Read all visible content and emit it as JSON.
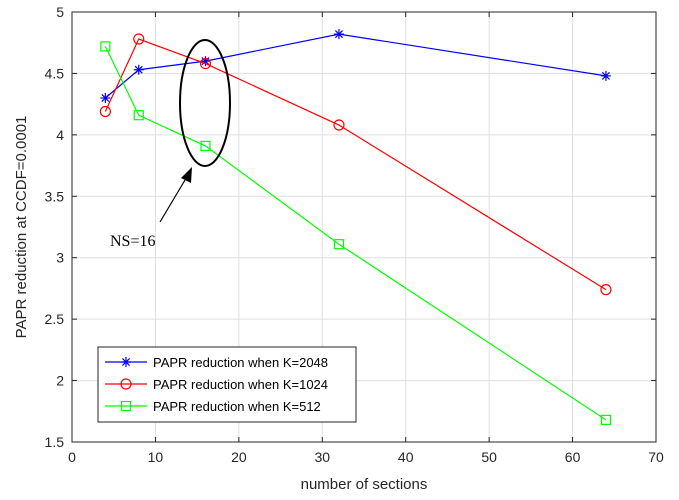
{
  "chart_data": {
    "type": "line",
    "xlabel": "number of sections",
    "ylabel": "PAPR reduction at CCDF=0.0001",
    "xlim": [
      0,
      70
    ],
    "ylim": [
      1.5,
      5
    ],
    "x_ticks": [
      0,
      10,
      20,
      30,
      40,
      50,
      60,
      70
    ],
    "y_ticks": [
      1.5,
      2,
      2.5,
      3,
      3.5,
      4,
      4.5,
      5
    ],
    "x_tick_labels": [
      "0",
      "10",
      "20",
      "30",
      "40",
      "50",
      "60",
      "70"
    ],
    "y_tick_labels": [
      "1.5",
      "2",
      "2.5",
      "3",
      "3.5",
      "4",
      "4.5",
      "5"
    ],
    "grid": true,
    "legend_position": "bottom-left",
    "series": [
      {
        "name": "PAPR reduction when K=2048",
        "color": "#0000ff",
        "marker": "asterisk",
        "x": [
          4,
          8,
          16,
          32,
          64
        ],
        "y": [
          4.3,
          4.53,
          4.6,
          4.82,
          4.48
        ]
      },
      {
        "name": "PAPR reduction when K=1024",
        "color": "#ff0000",
        "marker": "circle",
        "x": [
          4,
          8,
          16,
          32,
          64
        ],
        "y": [
          4.19,
          4.78,
          4.58,
          4.08,
          2.74
        ]
      },
      {
        "name": "PAPR reduction when K=512",
        "color": "#00ff00",
        "marker": "square",
        "x": [
          4,
          8,
          16,
          32,
          64
        ],
        "y": [
          4.72,
          4.16,
          3.91,
          3.11,
          1.68
        ]
      }
    ],
    "annotation": {
      "text": "NS=16",
      "target_x": 16,
      "target_y": 4.1
    }
  }
}
